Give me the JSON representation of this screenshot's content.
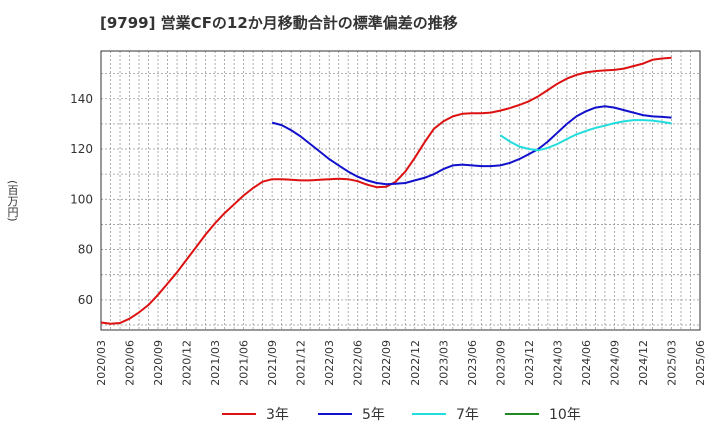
{
  "title": "[9799]  営業CFの12か月移動合計の標準偏差の推移",
  "chart_data": {
    "type": "line",
    "title": "[9799]  営業CFの12か月移動合計の標準偏差の推移",
    "xlabel": "",
    "ylabel": "(百万円)",
    "ylim": [
      48,
      159
    ],
    "yticks": [
      60,
      80,
      100,
      120,
      140
    ],
    "xtick_labels": [
      "2020/03",
      "2020/06",
      "2020/09",
      "2020/12",
      "2021/03",
      "2021/06",
      "2021/09",
      "2021/12",
      "2022/03",
      "2022/06",
      "2022/09",
      "2022/12",
      "2023/03",
      "2023/06",
      "2023/09",
      "2023/12",
      "2024/03",
      "2024/06",
      "2024/09",
      "2024/12",
      "2025/03",
      "2025/06"
    ],
    "grid": true,
    "legend_position": "bottom",
    "series": [
      {
        "name": "3年",
        "color": "#dd1111",
        "x": [
          "2020/03",
          "2020/04",
          "2020/05",
          "2020/06",
          "2020/07",
          "2020/08",
          "2020/09",
          "2020/10",
          "2020/11",
          "2020/12",
          "2021/01",
          "2021/02",
          "2021/03",
          "2021/04",
          "2021/05",
          "2021/06",
          "2021/07",
          "2021/08",
          "2021/09",
          "2021/10",
          "2021/11",
          "2021/12",
          "2022/01",
          "2022/02",
          "2022/03",
          "2022/04",
          "2022/05",
          "2022/06",
          "2022/07",
          "2022/08",
          "2022/09",
          "2022/10",
          "2022/11",
          "2022/12",
          "2023/01",
          "2023/02",
          "2023/03",
          "2023/04",
          "2023/05",
          "2023/06",
          "2023/07",
          "2023/08",
          "2023/09",
          "2023/10",
          "2023/11",
          "2023/12",
          "2024/01",
          "2024/02",
          "2024/03",
          "2024/04",
          "2024/05",
          "2024/06",
          "2024/07",
          "2024/08",
          "2024/09",
          "2024/10",
          "2024/11",
          "2024/12",
          "2025/01",
          "2025/02",
          "2025/03"
        ],
        "values": [
          51,
          50.5,
          50.8,
          52.5,
          55,
          58,
          62,
          66.5,
          71,
          76,
          81,
          86,
          90.5,
          94.5,
          98,
          101.5,
          104.5,
          107,
          108,
          108,
          107.8,
          107.5,
          107.5,
          107.8,
          108,
          108.2,
          108,
          107.2,
          105.8,
          104.8,
          105,
          107,
          111,
          116.5,
          122.5,
          128,
          131,
          133,
          134,
          134.2,
          134.2,
          134.5,
          135.3,
          136.3,
          137.5,
          139,
          141,
          143.5,
          146,
          148,
          149.5,
          150.5,
          151,
          151.3,
          151.5,
          152,
          153,
          154,
          155.5,
          156,
          156.3
        ]
      },
      {
        "name": "5年",
        "color": "#1111cc",
        "x": [
          "2021/09",
          "2021/10",
          "2021/11",
          "2021/12",
          "2022/01",
          "2022/02",
          "2022/03",
          "2022/04",
          "2022/05",
          "2022/06",
          "2022/07",
          "2022/08",
          "2022/09",
          "2022/10",
          "2022/11",
          "2022/12",
          "2023/01",
          "2023/02",
          "2023/03",
          "2023/04",
          "2023/05",
          "2023/06",
          "2023/07",
          "2023/08",
          "2023/09",
          "2023/10",
          "2023/11",
          "2023/12",
          "2024/01",
          "2024/02",
          "2024/03",
          "2024/04",
          "2024/05",
          "2024/06",
          "2024/07",
          "2024/08",
          "2024/09",
          "2024/10",
          "2024/11",
          "2024/12",
          "2025/01",
          "2025/02",
          "2025/03"
        ],
        "values": [
          130.5,
          129.5,
          127.5,
          125,
          122,
          119,
          116,
          113.5,
          111,
          109,
          107.5,
          106.5,
          106,
          106.2,
          106.5,
          107.5,
          108.5,
          110,
          112,
          113.5,
          113.8,
          113.5,
          113.2,
          113.2,
          113.5,
          114.5,
          116,
          118,
          120,
          123,
          126.5,
          130,
          133,
          135,
          136.5,
          137,
          136.5,
          135.5,
          134.5,
          133.5,
          133,
          132.8,
          132.5
        ]
      },
      {
        "name": "7年",
        "color": "#22dddd",
        "x": [
          "2023/09",
          "2023/10",
          "2023/11",
          "2023/12",
          "2024/01",
          "2024/02",
          "2024/03",
          "2024/04",
          "2024/05",
          "2024/06",
          "2024/07",
          "2024/08",
          "2024/09",
          "2024/10",
          "2024/11",
          "2024/12",
          "2025/01",
          "2025/02",
          "2025/03"
        ],
        "values": [
          125.5,
          123,
          121,
          120,
          119.5,
          120.5,
          122,
          124,
          125.8,
          127.2,
          128.4,
          129.3,
          130.3,
          131,
          131.5,
          131.5,
          131.3,
          130.8,
          130.2
        ]
      },
      {
        "name": "10年",
        "color": "#228822",
        "x": [],
        "values": []
      }
    ]
  }
}
